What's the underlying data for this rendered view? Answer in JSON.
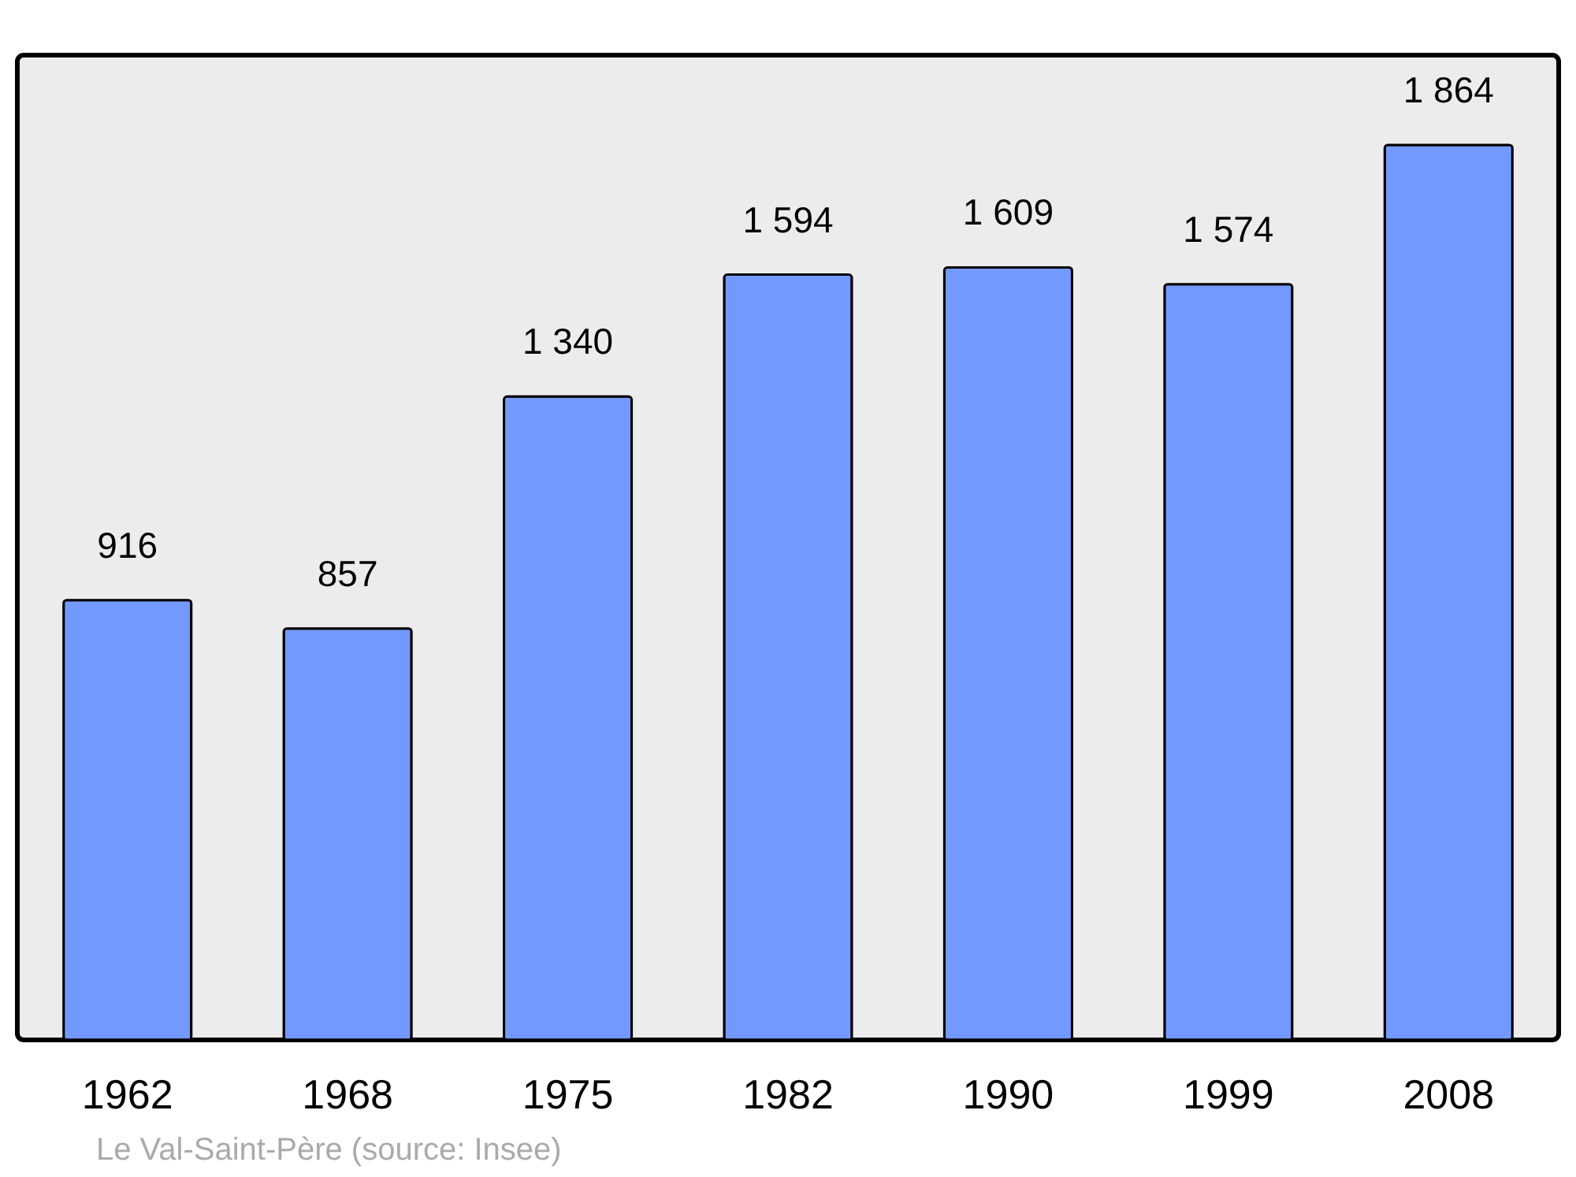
{
  "chart_data": {
    "type": "bar",
    "categories": [
      "1962",
      "1968",
      "1975",
      "1982",
      "1990",
      "1999",
      "2008"
    ],
    "values": [
      916,
      857,
      1340,
      1594,
      1609,
      1574,
      1864
    ],
    "value_labels": [
      "916",
      "857",
      "1 340",
      "1 594",
      "1 609",
      "1 574",
      "1 864"
    ],
    "color": "#7399ff",
    "annotations": [
      "Le Val-Saint-Père    (source: Insee)"
    ],
    "grid": false
  }
}
